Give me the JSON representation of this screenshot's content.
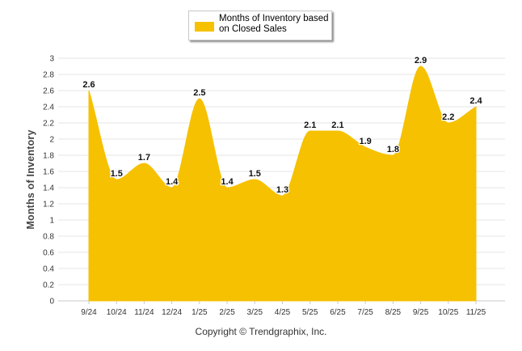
{
  "chart_data": {
    "type": "area",
    "title": "",
    "series_name": "Months of Inventory based on Closed Sales",
    "categories": [
      "9/24",
      "10/24",
      "11/24",
      "12/24",
      "1/25",
      "2/25",
      "3/25",
      "4/25",
      "5/25",
      "6/25",
      "7/25",
      "8/25",
      "9/25",
      "10/25",
      "11/25"
    ],
    "values": [
      2.6,
      1.5,
      1.7,
      1.4,
      2.5,
      1.4,
      1.5,
      1.3,
      2.1,
      2.1,
      1.9,
      1.8,
      2.9,
      2.2,
      2.4
    ],
    "ylabel": "Months of Inventory",
    "xlabel": "",
    "ylim": [
      0,
      3
    ],
    "yticks": [
      "0",
      "0.2",
      "0.4",
      "0.6",
      "0.8",
      "1",
      "1.2",
      "1.4",
      "1.6",
      "1.8",
      "2",
      "2.2",
      "2.4",
      "2.6",
      "2.8",
      "3"
    ],
    "color": "#f6c100",
    "legend_position": "top-center",
    "grid": true
  },
  "footer": "Copyright © Trendgraphix, Inc."
}
